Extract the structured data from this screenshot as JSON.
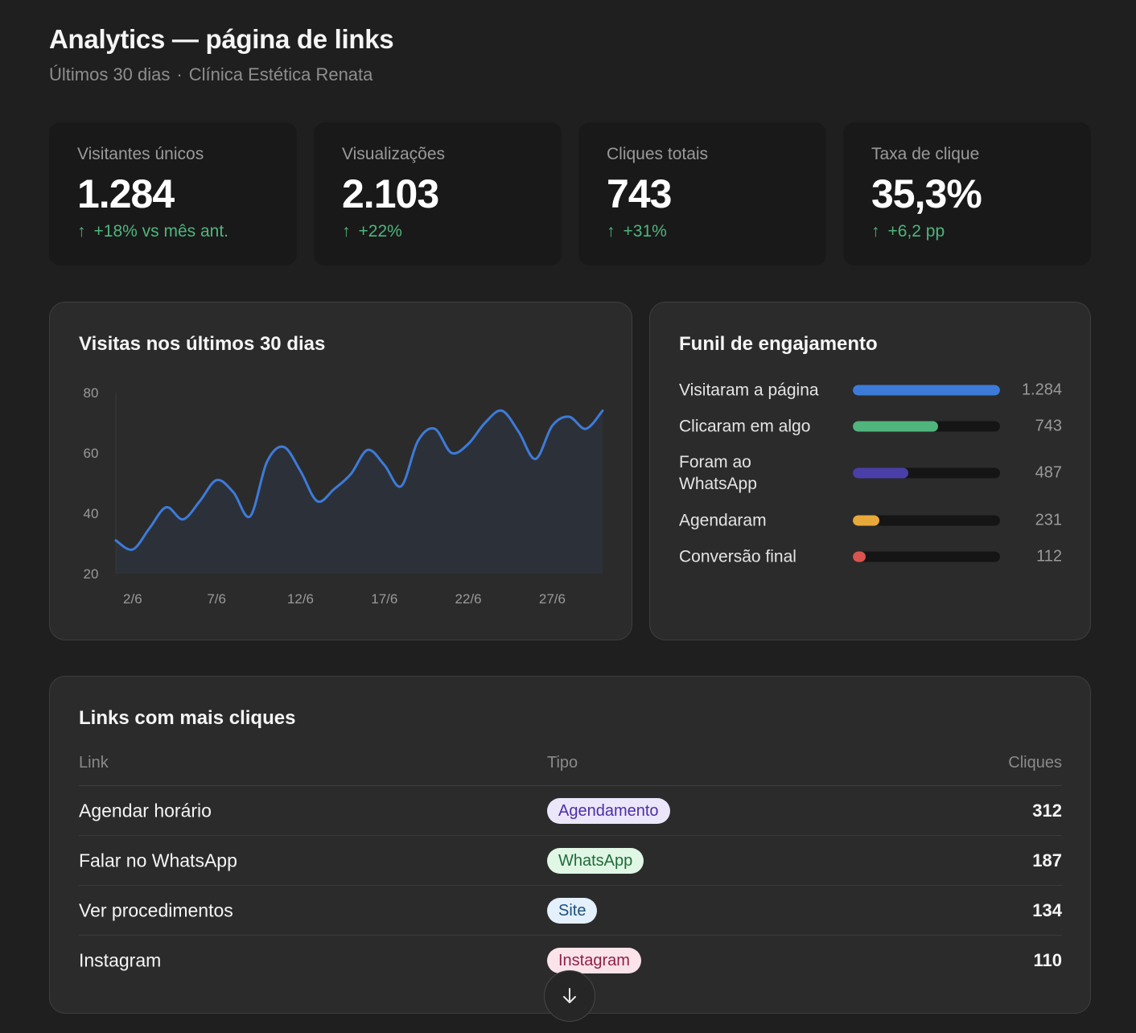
{
  "header": {
    "title": "Analytics — página de links",
    "period": "Últimos 30 dias",
    "separator": "·",
    "client": "Clínica Estética Renata"
  },
  "kpis": [
    {
      "label": "Visitantes únicos",
      "value": "1.284",
      "arrow": "↑",
      "delta": "+18% vs mês ant."
    },
    {
      "label": "Visualizações",
      "value": "2.103",
      "arrow": "↑",
      "delta": "+22%"
    },
    {
      "label": "Cliques totais",
      "value": "743",
      "arrow": "↑",
      "delta": "+31%"
    },
    {
      "label": "Taxa de clique",
      "value": "35,3%",
      "arrow": "↑",
      "delta": "+6,2 pp"
    }
  ],
  "visits_chart": {
    "title": "Visitas nos últimos 30 dias"
  },
  "chart_data": {
    "type": "area",
    "title": "Visitas nos últimos 30 dias",
    "x": [
      "1/6",
      "2/6",
      "3/6",
      "4/6",
      "5/6",
      "6/6",
      "7/6",
      "8/6",
      "9/6",
      "10/6",
      "11/6",
      "12/6",
      "13/6",
      "14/6",
      "15/6",
      "16/6",
      "17/6",
      "18/6",
      "19/6",
      "20/6",
      "21/6",
      "22/6",
      "23/6",
      "24/6",
      "25/6",
      "26/6",
      "27/6",
      "28/6",
      "29/6",
      "30/6"
    ],
    "values": [
      31,
      28,
      35,
      42,
      38,
      44,
      51,
      47,
      39,
      57,
      62,
      54,
      44,
      48,
      53,
      61,
      56,
      49,
      64,
      68,
      60,
      63,
      70,
      74,
      67,
      58,
      69,
      72,
      68,
      74
    ],
    "x_tick_labels": [
      "2/6",
      "7/6",
      "12/6",
      "17/6",
      "22/6",
      "27/6"
    ],
    "y_ticks": [
      20,
      40,
      60,
      80
    ],
    "ylim": [
      20,
      80
    ],
    "line_color": "#3d7bd9",
    "fill_color": "#2c3139"
  },
  "funnel": {
    "title": "Funil de engajamento",
    "steps": [
      {
        "label": "Visitaram a página",
        "value": "1.284",
        "fraction": 1.0,
        "color": "#3d7bd9"
      },
      {
        "label": "Clicaram em algo",
        "value": "743",
        "fraction": 0.579,
        "color": "#4fb57c"
      },
      {
        "label": "Foram ao WhatsApp",
        "value": "487",
        "fraction": 0.379,
        "color": "#4a3fa8"
      },
      {
        "label": "Agendaram",
        "value": "231",
        "fraction": 0.18,
        "color": "#e8a93a"
      },
      {
        "label": "Conversão final",
        "value": "112",
        "fraction": 0.087,
        "color": "#d9534f"
      }
    ]
  },
  "top_links": {
    "title": "Links com mais cliques",
    "columns": {
      "link": "Link",
      "type": "Tipo",
      "clicks": "Cliques"
    },
    "rows": [
      {
        "name": "Agendar horário",
        "type": "Agendamento",
        "clicks": "312",
        "badge_bg": "#ece6fb",
        "badge_fg": "#4b2fa6"
      },
      {
        "name": "Falar no WhatsApp",
        "type": "WhatsApp",
        "clicks": "187",
        "badge_bg": "#e1f7e6",
        "badge_fg": "#1f6b37"
      },
      {
        "name": "Ver procedimentos",
        "type": "Site",
        "clicks": "134",
        "badge_bg": "#e4f0fb",
        "badge_fg": "#1d4f7e"
      },
      {
        "name": "Instagram",
        "type": "Instagram",
        "clicks": "110",
        "badge_bg": "#fbe3ea",
        "badge_fg": "#8f1f45"
      }
    ]
  },
  "scroll_button": {
    "icon": "arrow-down-icon"
  }
}
